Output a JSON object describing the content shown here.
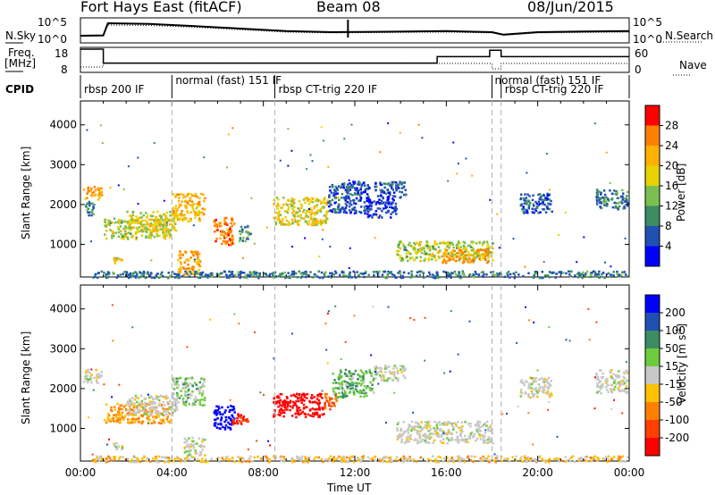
{
  "header": {
    "station": "Fort Hays East (fitACF)",
    "beam": "Beam 08",
    "date": "08/Jun/2015"
  },
  "top_panels": {
    "nsky_label": "N.Sky",
    "nsearch_label": "N.Search",
    "noise_ticks": [
      "10^5",
      "10^0"
    ],
    "freq_label_line1": "Freq.",
    "freq_label_line2": "[MHz]",
    "freq_ticks": [
      "18",
      "8"
    ],
    "nave_label": "Nave",
    "nave_ticks": [
      "60",
      "0"
    ],
    "cpid_label": "CPID"
  },
  "cpid_segments": [
    {
      "label": "rbsp 200 IF",
      "start_h": 0.0,
      "end_h": 4.0
    },
    {
      "label": "normal (fast) 151 IF",
      "start_h": 4.0,
      "end_h": 8.5
    },
    {
      "label": "rbsp CT-trig 220 IF",
      "start_h": 8.5,
      "end_h": 18.0
    },
    {
      "label": "normal (fast) 151 IF",
      "start_h": 18.0,
      "end_h": 18.4
    },
    {
      "label": "rbsp CT-trig 220 IF",
      "start_h": 18.4,
      "end_h": 24.0
    }
  ],
  "axes": {
    "ylabel": "Slant Range [km]",
    "xlabel": "Time UT",
    "y_ticks": [
      "4000",
      "3000",
      "2000",
      "1000"
    ],
    "x_ticks": [
      "00:00",
      "04:00",
      "08:00",
      "12:00",
      "16:00",
      "20:00",
      "00:00"
    ]
  },
  "power_scale": {
    "label": "Power [dB]",
    "ticks": [
      "28",
      "24",
      "20",
      "16",
      "12",
      "8",
      "4"
    ],
    "colors": [
      "#ff0000",
      "#ff8000",
      "#ffb000",
      "#e8d200",
      "#7ac050",
      "#3c8c64",
      "#2050b4",
      "#0000ff"
    ]
  },
  "velocity_scale": {
    "label": "Velocity [m s",
    "label_sup": "-1",
    "label_end": "]",
    "ticks": [
      "200",
      "100",
      "50",
      "15",
      "-15",
      "-50",
      "-100",
      "-200"
    ],
    "colors": [
      "#0000ff",
      "#2050b4",
      "#3c8c64",
      "#6ccc3c",
      "#c8c8c8",
      "#ffc000",
      "#ff8000",
      "#ff4000",
      "#ff0000"
    ]
  },
  "chart_data": [
    {
      "type": "line",
      "title": "N.Sky / N.Search",
      "x_range_hours": [
        0,
        24
      ],
      "ylim": [
        "10^0",
        "10^5"
      ],
      "series": [
        {
          "name": "N.Sky",
          "x": [
            0,
            1,
            1.2,
            3,
            5,
            7,
            9,
            11,
            13,
            16,
            18,
            18.5,
            20,
            22,
            24
          ],
          "values": [
            0.5,
            0.6,
            4.0,
            3.8,
            3.2,
            2.5,
            1.8,
            1.5,
            1.6,
            1.8,
            1.5,
            0.8,
            1.5,
            1.7,
            1.8
          ]
        },
        {
          "name": "N.Search",
          "x": [
            0,
            1,
            1.2,
            3,
            5,
            7,
            9,
            11,
            13,
            16,
            18,
            18.5,
            20,
            22,
            24
          ],
          "values": [
            0.4,
            0.5,
            3.5,
            3.4,
            2.9,
            2.2,
            1.5,
            1.3,
            1.4,
            1.5,
            1.3,
            0.6,
            1.3,
            1.4,
            1.5
          ]
        }
      ]
    },
    {
      "type": "line",
      "title": "Freq. / Nave",
      "x_range_hours": [
        0,
        24
      ],
      "series": [
        {
          "name": "Freq.",
          "x": [
            0,
            1,
            1,
            11.5,
            11.5,
            15.6,
            15.6,
            17.9,
            17.9,
            18.4,
            18.4,
            24
          ],
          "values": [
            18,
            18,
            11.5,
            11.5,
            11.5,
            11.5,
            14.5,
            14.5,
            17.5,
            17.5,
            14.5,
            14.5
          ]
        },
        {
          "name": "Nave",
          "x": [
            0,
            1,
            1,
            18,
            18,
            18.4,
            18.4,
            24
          ],
          "values": [
            10,
            10,
            20,
            20,
            5,
            5,
            20,
            20
          ]
        }
      ]
    },
    {
      "type": "heatmap",
      "title": "Power",
      "x_range_hours": [
        0,
        24
      ],
      "ylim": [
        180,
        4600
      ],
      "zlim_db": [
        0,
        30
      ],
      "blobs": [
        {
          "t0": 0.1,
          "t1": 0.9,
          "r0": 2150,
          "r1": 2500,
          "v": 22
        },
        {
          "t0": 0.2,
          "t1": 0.6,
          "r0": 1700,
          "r1": 2100,
          "v": 10
        },
        {
          "t0": 1.0,
          "t1": 3.9,
          "r0": 1150,
          "r1": 1650,
          "v": 16
        },
        {
          "t0": 2.0,
          "t1": 4.2,
          "r0": 1350,
          "r1": 1850,
          "v": 18
        },
        {
          "t0": 4.0,
          "t1": 5.4,
          "r0": 1600,
          "r1": 2300,
          "v": 20
        },
        {
          "t0": 1.4,
          "t1": 1.8,
          "r0": 500,
          "r1": 700,
          "v": 18
        },
        {
          "t0": 4.2,
          "t1": 5.2,
          "r0": 250,
          "r1": 850,
          "v": 22
        },
        {
          "t0": 5.8,
          "t1": 6.7,
          "r0": 1000,
          "r1": 1700,
          "v": 24
        },
        {
          "t0": 6.9,
          "t1": 7.4,
          "r0": 1100,
          "r1": 1500,
          "v": 12
        },
        {
          "t0": 8.4,
          "t1": 10.8,
          "r0": 1500,
          "r1": 2200,
          "v": 18
        },
        {
          "t0": 10.8,
          "t1": 12.6,
          "r0": 1800,
          "r1": 2600,
          "v": 8
        },
        {
          "t0": 12.4,
          "t1": 13.8,
          "r0": 1700,
          "r1": 2200,
          "v": 6
        },
        {
          "t0": 12.8,
          "t1": 14.2,
          "r0": 2200,
          "r1": 2600,
          "v": 8
        },
        {
          "t0": 13.8,
          "t1": 18.0,
          "r0": 600,
          "r1": 1100,
          "v": 16
        },
        {
          "t0": 15.8,
          "t1": 17.8,
          "r0": 550,
          "r1": 900,
          "v": 22
        },
        {
          "t0": 19.2,
          "t1": 20.6,
          "r0": 1800,
          "r1": 2300,
          "v": 8
        },
        {
          "t0": 22.5,
          "t1": 23.9,
          "r0": 1900,
          "r1": 2400,
          "v": 10
        },
        {
          "t0": 0.5,
          "t1": 23.9,
          "r0": 180,
          "r1": 350,
          "v": 10
        }
      ]
    },
    {
      "type": "heatmap",
      "title": "Velocity",
      "x_range_hours": [
        0,
        24
      ],
      "ylim": [
        180,
        4600
      ],
      "zlim_ms": [
        -250,
        250
      ],
      "blobs": [
        {
          "t0": 0.1,
          "t1": 0.9,
          "r0": 2150,
          "r1": 2500,
          "v": 0
        },
        {
          "t0": 1.0,
          "t1": 3.9,
          "r0": 1150,
          "r1": 1650,
          "v": -40
        },
        {
          "t0": 2.0,
          "t1": 4.2,
          "r0": 1350,
          "r1": 1850,
          "v": 0
        },
        {
          "t0": 4.0,
          "t1": 5.4,
          "r0": 1600,
          "r1": 2300,
          "v": 20
        },
        {
          "t0": 1.4,
          "t1": 1.8,
          "r0": 500,
          "r1": 700,
          "v": 0
        },
        {
          "t0": 4.5,
          "t1": 5.4,
          "r0": 300,
          "r1": 800,
          "v": 0
        },
        {
          "t0": 5.8,
          "t1": 6.7,
          "r0": 1000,
          "r1": 1600,
          "v": 230
        },
        {
          "t0": 6.6,
          "t1": 7.3,
          "r0": 1100,
          "r1": 1400,
          "v": -150
        },
        {
          "t0": 8.4,
          "t1": 10.6,
          "r0": 1300,
          "r1": 1900,
          "v": -230
        },
        {
          "t0": 10.6,
          "t1": 11.2,
          "r0": 1500,
          "r1": 1900,
          "v": -80
        },
        {
          "t0": 11.0,
          "t1": 12.8,
          "r0": 1800,
          "r1": 2500,
          "v": 30
        },
        {
          "t0": 12.8,
          "t1": 14.2,
          "r0": 2200,
          "r1": 2600,
          "v": 0
        },
        {
          "t0": 13.8,
          "t1": 18.0,
          "r0": 650,
          "r1": 1200,
          "v": 0
        },
        {
          "t0": 19.2,
          "t1": 20.6,
          "r0": 1800,
          "r1": 2300,
          "v": 0
        },
        {
          "t0": 22.5,
          "t1": 23.9,
          "r0": 1900,
          "r1": 2500,
          "v": 0
        },
        {
          "t0": 0.5,
          "t1": 23.9,
          "r0": 180,
          "r1": 330,
          "v": -20
        }
      ]
    }
  ]
}
